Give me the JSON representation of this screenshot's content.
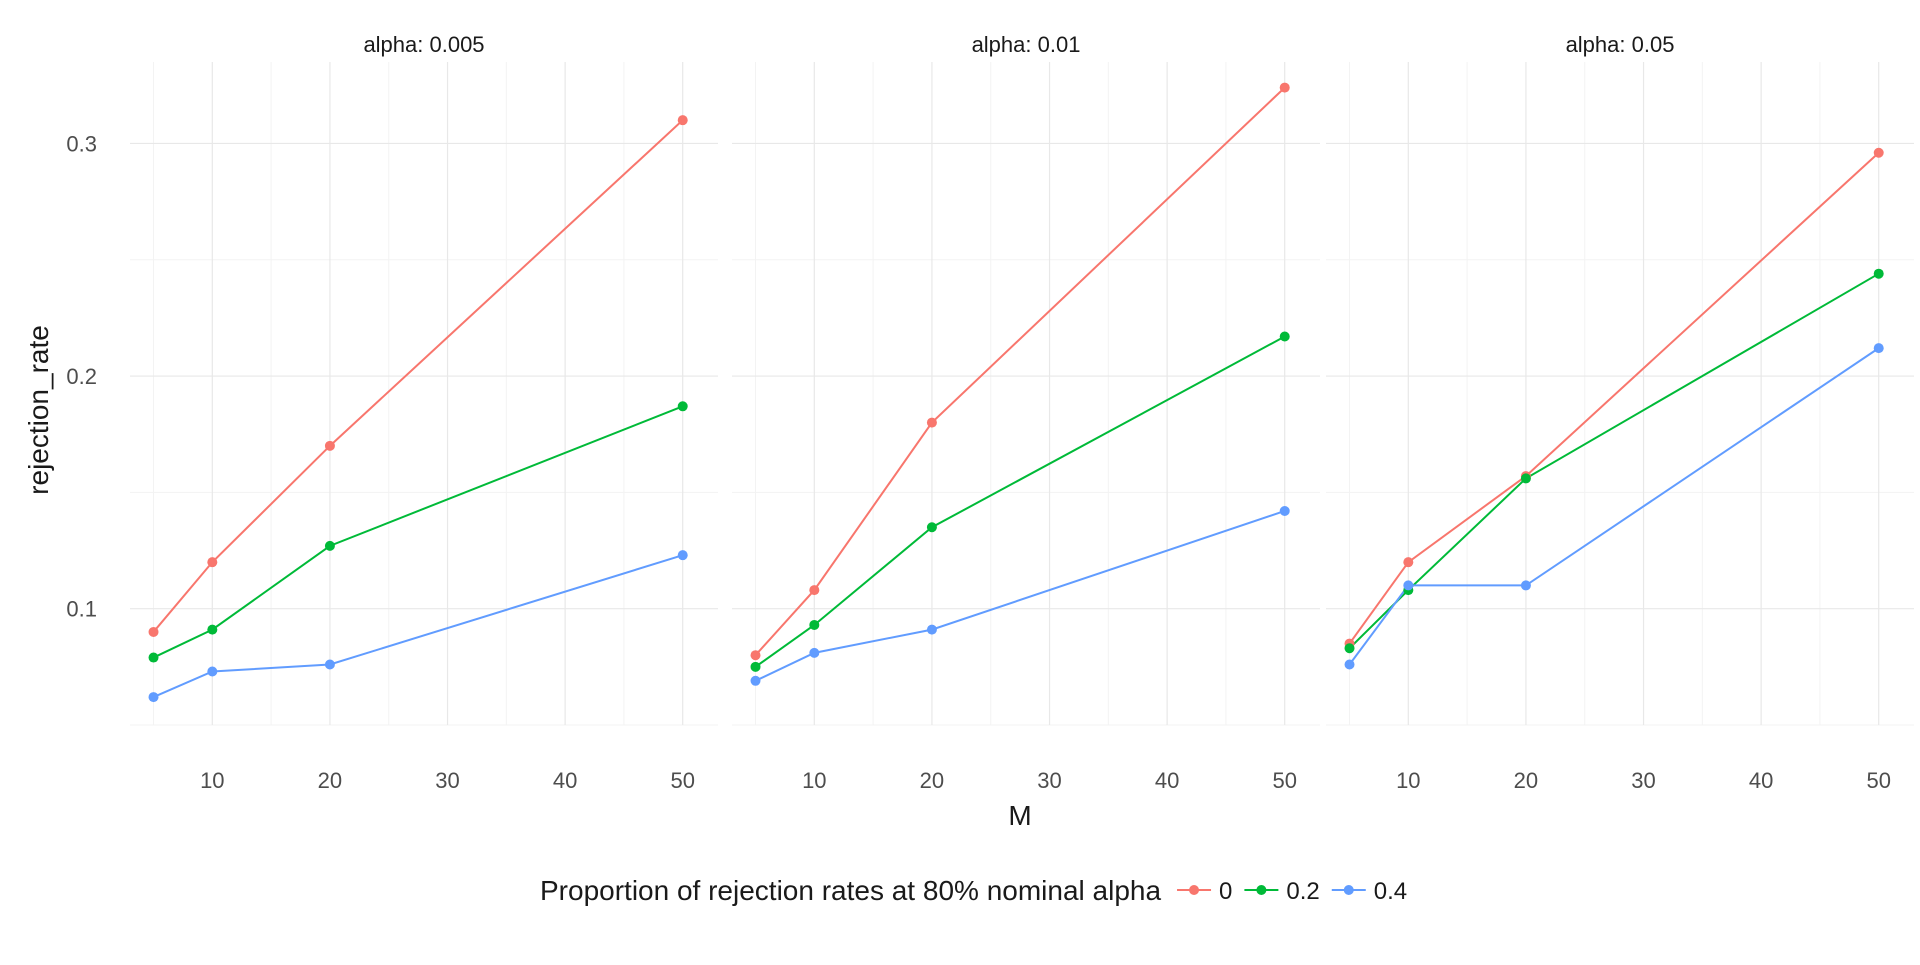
{
  "chart_data": {
    "type": "line",
    "xlabel": "M",
    "ylabel": "rejection_rate",
    "facet_label_prefix": "alpha: ",
    "x_ticks": [
      "10",
      "20",
      "30",
      "40",
      "50"
    ],
    "y_ticks": [
      "0.1",
      "0.2",
      "0.3"
    ],
    "xlim": [
      3,
      53
    ],
    "ylim": [
      0.05,
      0.335
    ],
    "grid": true,
    "legend_placement": "bottom",
    "legend_title": "Proportion of rejection rates at 80% nominal alpha",
    "series_meta": [
      {
        "name": "0",
        "color": "#F8766D"
      },
      {
        "name": "0.2",
        "color": "#00BA38"
      },
      {
        "name": "0.4",
        "color": "#619CFF"
      }
    ],
    "x": [
      5,
      10,
      20,
      50
    ],
    "facets": [
      {
        "label": "alpha: 0.005",
        "series": [
          {
            "name": "0",
            "values": [
              0.09,
              0.12,
              0.17,
              0.31
            ]
          },
          {
            "name": "0.2",
            "values": [
              0.079,
              0.091,
              0.127,
              0.187
            ]
          },
          {
            "name": "0.4",
            "values": [
              0.062,
              0.073,
              0.076,
              0.123
            ]
          }
        ]
      },
      {
        "label": "alpha: 0.01",
        "series": [
          {
            "name": "0",
            "values": [
              0.08,
              0.108,
              0.18,
              0.324
            ]
          },
          {
            "name": "0.2",
            "values": [
              0.075,
              0.093,
              0.135,
              0.217
            ]
          },
          {
            "name": "0.4",
            "values": [
              0.069,
              0.081,
              0.091,
              0.142
            ]
          }
        ]
      },
      {
        "label": "alpha: 0.05",
        "series": [
          {
            "name": "0",
            "values": [
              0.085,
              0.12,
              0.157,
              0.296
            ]
          },
          {
            "name": "0.2",
            "values": [
              0.083,
              0.108,
              0.156,
              0.244
            ]
          },
          {
            "name": "0.4",
            "values": [
              0.076,
              0.11,
              0.11,
              0.212
            ]
          }
        ]
      }
    ]
  }
}
